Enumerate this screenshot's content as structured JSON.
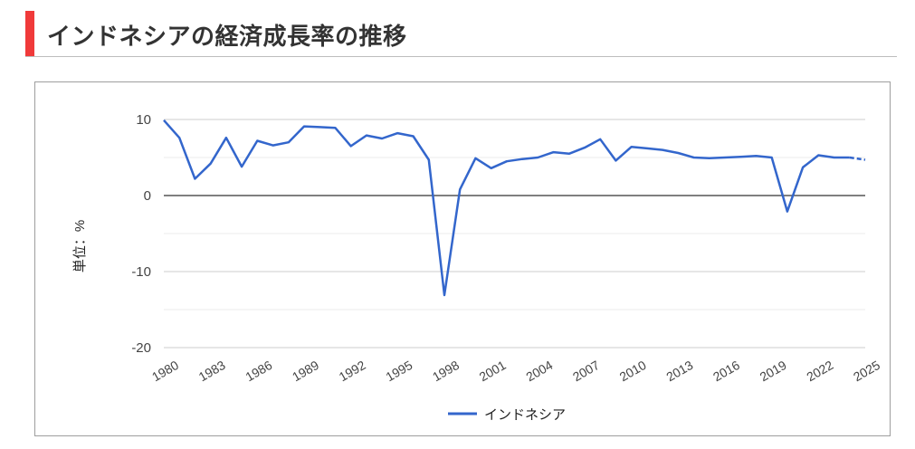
{
  "page": {
    "title": "インドネシアの経済成長率の推移"
  },
  "colors": {
    "accent_bar": "#f03a3a",
    "series_line": "#3366cc",
    "zero_line": "#333333",
    "grid": "#cccccc"
  },
  "chart_data": {
    "type": "line",
    "title": "",
    "xlabel": "",
    "ylabel": "単位：%",
    "ylim": [
      -20,
      10
    ],
    "yticks": [
      10,
      0,
      -10,
      -20
    ],
    "xticks": [
      1980,
      1983,
      1986,
      1989,
      1992,
      1995,
      1998,
      2001,
      2004,
      2007,
      2010,
      2013,
      2016,
      2019,
      2022,
      2025
    ],
    "grid": true,
    "legend": "bottom",
    "x": [
      1980,
      1981,
      1982,
      1983,
      1984,
      1985,
      1986,
      1987,
      1988,
      1989,
      1990,
      1991,
      1992,
      1993,
      1994,
      1995,
      1996,
      1997,
      1998,
      1999,
      2000,
      2001,
      2002,
      2003,
      2004,
      2005,
      2006,
      2007,
      2008,
      2009,
      2010,
      2011,
      2012,
      2013,
      2014,
      2015,
      2016,
      2017,
      2018,
      2019,
      2020,
      2021,
      2022,
      2023,
      2024,
      2025
    ],
    "series": [
      {
        "name": "インドネシア",
        "values": [
          9.9,
          7.6,
          2.2,
          4.2,
          7.6,
          3.8,
          7.2,
          6.6,
          7.0,
          9.1,
          9.0,
          8.9,
          6.5,
          7.9,
          7.5,
          8.2,
          7.8,
          4.7,
          -13.1,
          0.8,
          4.9,
          3.6,
          4.5,
          4.8,
          5.0,
          5.7,
          5.5,
          6.3,
          7.4,
          4.6,
          6.4,
          6.2,
          6.0,
          5.6,
          5.0,
          4.9,
          5.0,
          5.1,
          5.2,
          5.0,
          -2.1,
          3.7,
          5.3,
          5.0,
          5.0,
          4.7
        ],
        "projected_from": 2024
      }
    ]
  }
}
